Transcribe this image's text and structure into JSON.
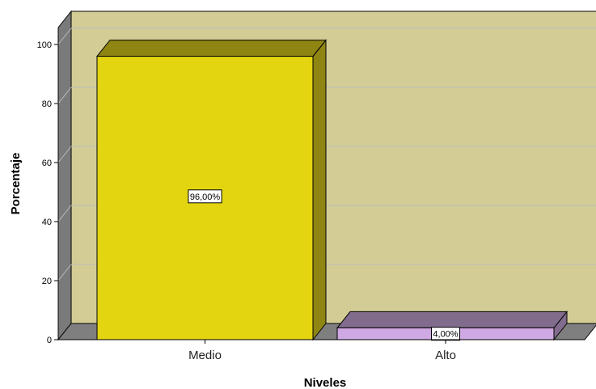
{
  "chart_data": {
    "type": "bar",
    "categories": [
      "Medio",
      "Alto"
    ],
    "values": [
      96,
      4
    ],
    "data_labels": [
      "96,00%",
      "4,00%"
    ],
    "xlabel": "Niveles",
    "ylabel": "Porcentaje",
    "ylim": [
      0,
      100
    ],
    "yticks": [
      0,
      20,
      40,
      60,
      80,
      100
    ],
    "grid": true,
    "style": "3d",
    "colors": {
      "bars": [
        "#e3d50f",
        "#cfa9e3"
      ],
      "bar_tops": [
        "#8e8512",
        "#826c8d"
      ],
      "bar_sides": [
        "#8e8512",
        "#826c8d"
      ],
      "wall": "#d3cd95",
      "floor": "#7f7f7f",
      "left_wall": "#7a7a7a",
      "gridline": "#bcbcbc"
    }
  }
}
